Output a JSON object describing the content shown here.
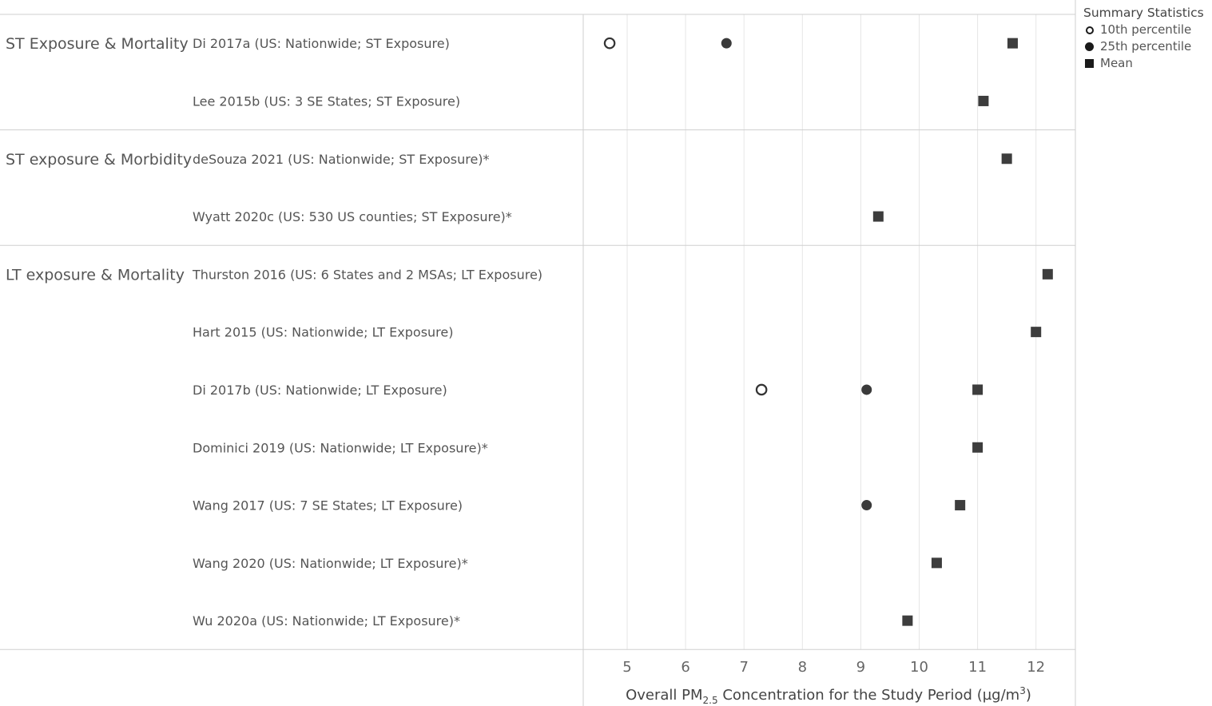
{
  "chart_data": {
    "type": "scatter",
    "xlabel_prefix": "Overall PM",
    "xlabel_sub": "2.5",
    "xlabel_suffix": " Concentration for the Study Period (µg/m",
    "xlabel_sup": "3",
    "xlabel_close": ")",
    "xlim": [
      4.25,
      12.7
    ],
    "xticks": [
      5,
      6,
      7,
      8,
      9,
      10,
      11,
      12
    ],
    "grid": true,
    "legend_placement": "top-right",
    "legend_title": "Summary Statistics",
    "series": [
      {
        "name": "10th percentile",
        "marker": "open-circle",
        "color": "#333333"
      },
      {
        "name": "25th percentile",
        "marker": "filled-circle",
        "color": "#3a3a3a"
      },
      {
        "name": "Mean",
        "marker": "square",
        "color": "#3d3d3d"
      }
    ],
    "groups": [
      {
        "label": "ST Exposure & Mortality",
        "studies": [
          {
            "label": "Di 2017a (US: Nationwide; ST Exposure)",
            "p10": 4.7,
            "p25": 6.7,
            "mean": 11.6
          },
          {
            "label": "Lee 2015b (US: 3 SE States; ST Exposure)",
            "p10": null,
            "p25": null,
            "mean": 11.1
          }
        ]
      },
      {
        "label": "ST exposure & Morbidity",
        "studies": [
          {
            "label": "deSouza 2021 (US: Nationwide; ST Exposure)*",
            "p10": null,
            "p25": null,
            "mean": 11.5
          },
          {
            "label": "Wyatt 2020c (US: 530 US counties; ST Exposure)*",
            "p10": null,
            "p25": null,
            "mean": 9.3
          }
        ]
      },
      {
        "label": "LT exposure & Mortality",
        "studies": [
          {
            "label": "Thurston 2016 (US: 6 States and 2 MSAs; LT Exposure)",
            "p10": null,
            "p25": null,
            "mean": 12.2
          },
          {
            "label": "Hart 2015 (US: Nationwide; LT Exposure)",
            "p10": null,
            "p25": null,
            "mean": 12.0
          },
          {
            "label": "Di 2017b (US: Nationwide; LT Exposure)",
            "p10": 7.3,
            "p25": 9.1,
            "mean": 11.0
          },
          {
            "label": "Dominici 2019 (US: Nationwide; LT Exposure)*",
            "p10": null,
            "p25": null,
            "mean": 11.0
          },
          {
            "label": "Wang 2017 (US: 7 SE States; LT Exposure)",
            "p10": null,
            "p25": 9.1,
            "mean": 10.7
          },
          {
            "label": "Wang 2020 (US: Nationwide; LT Exposure)*",
            "p10": null,
            "p25": null,
            "mean": 10.3
          },
          {
            "label": "Wu 2020a (US: Nationwide; LT Exposure)*",
            "p10": null,
            "p25": null,
            "mean": 9.8
          }
        ]
      }
    ]
  }
}
